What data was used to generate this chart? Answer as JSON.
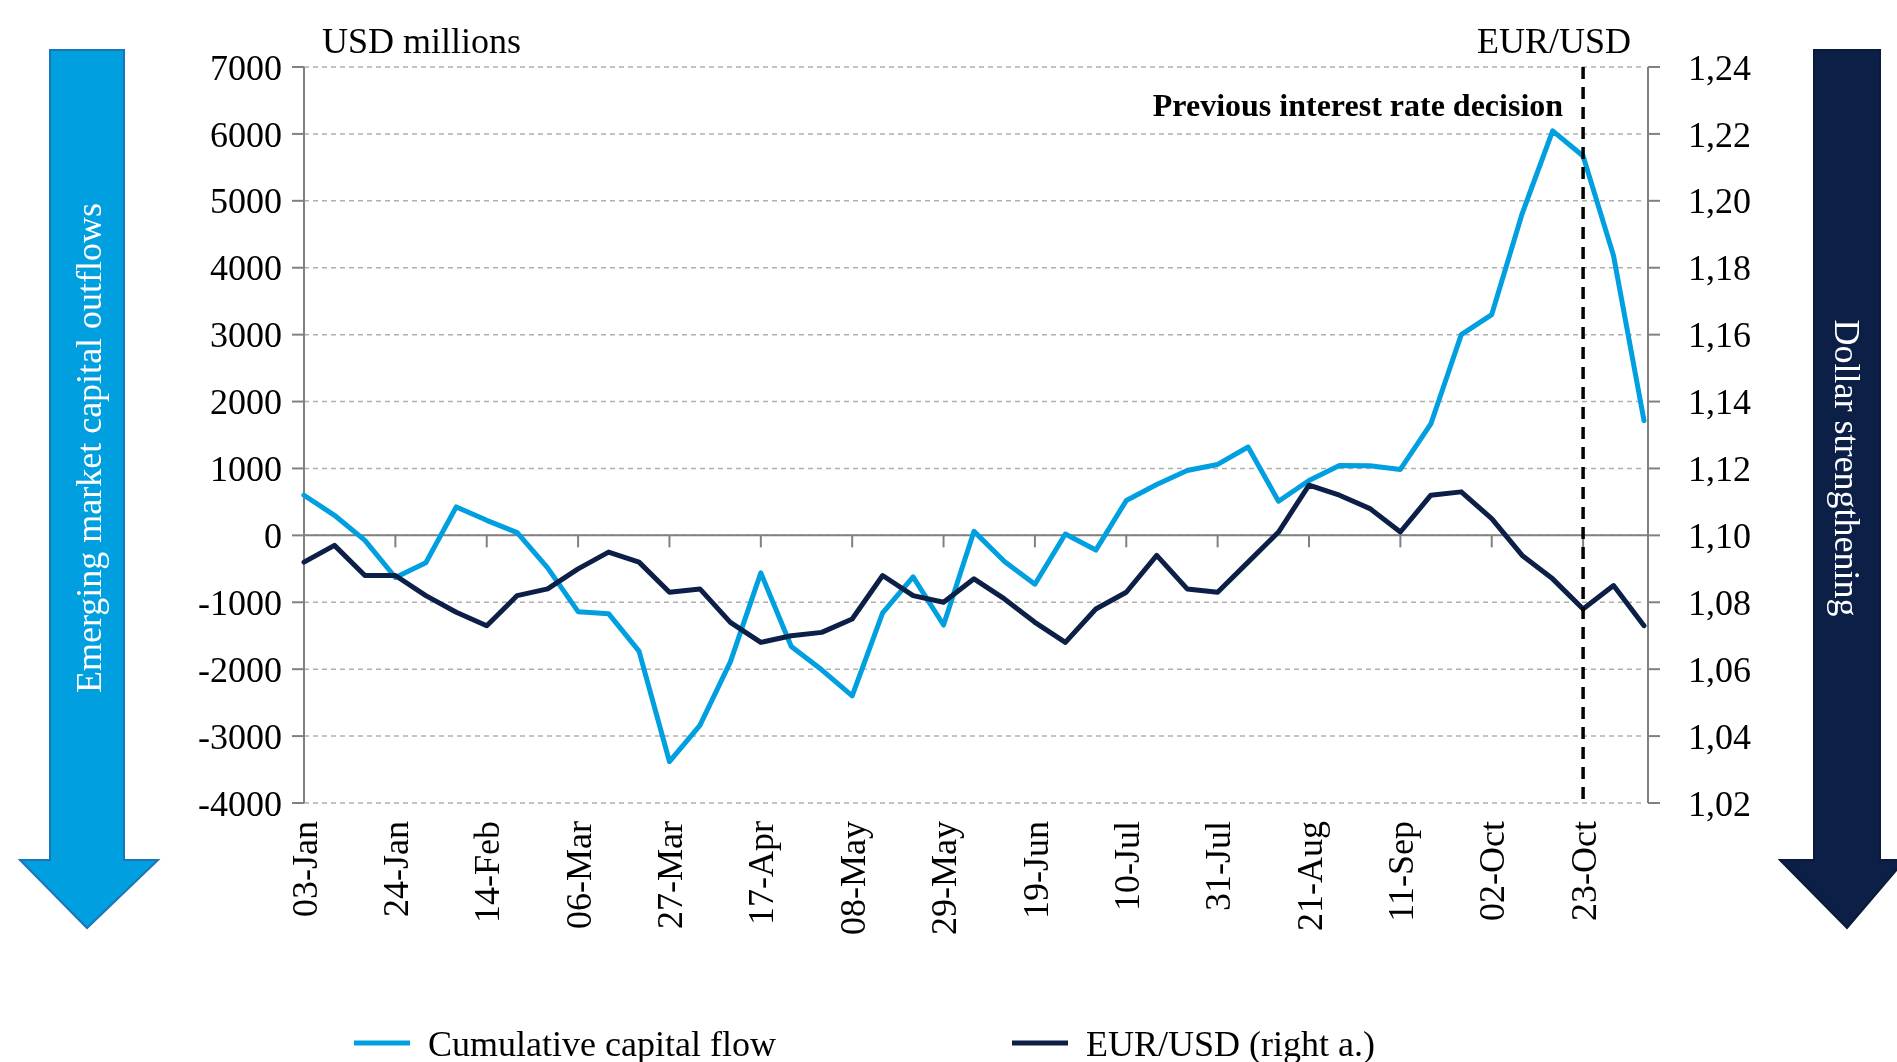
{
  "chart_data": {
    "type": "line",
    "ylabel": "USD millions",
    "y2label": "EUR/USD",
    "categories": [
      "03-Jan",
      null,
      null,
      "24-Jan",
      null,
      null,
      "14-Feb",
      null,
      null,
      "06-Mar",
      null,
      null,
      "27-Mar",
      null,
      null,
      "17-Apr",
      null,
      null,
      "08-May",
      null,
      null,
      "29-May",
      null,
      null,
      "19-Jun",
      null,
      null,
      "10-Jul",
      null,
      null,
      "31-Jul",
      null,
      null,
      "21-Aug",
      null,
      null,
      "11-Sep",
      null,
      null,
      "02-Oct",
      null,
      null,
      "23-Oct",
      null,
      null
    ],
    "series": [
      {
        "name": "Cumulative capital flow",
        "color": "#009fdf",
        "values": [
          600,
          300,
          -75,
          -630,
          -410,
          425,
          225,
          40,
          -485,
          -1140,
          -1170,
          -1730,
          -3380,
          -2840,
          -1890,
          -560,
          -1660,
          -2010,
          -2400,
          -1160,
          -620,
          -1340,
          60,
          -390,
          -730,
          20,
          -220,
          520,
          760,
          970,
          1060,
          1320,
          510,
          820,
          1045,
          1040,
          985,
          1665,
          3000,
          3300,
          4810,
          6045,
          5670,
          4180,
          1715
        ]
      },
      {
        "name": "EUR/USD (right a.)",
        "color": "#0c1f47",
        "axis": "y2",
        "values": [
          1.092,
          1.097,
          1.088,
          1.088,
          1.082,
          1.077,
          1.073,
          1.082,
          1.084,
          1.09,
          1.095,
          1.092,
          1.083,
          1.084,
          1.074,
          1.068,
          1.07,
          1.071,
          1.075,
          1.088,
          1.082,
          1.08,
          1.087,
          1.081,
          1.074,
          1.068,
          1.078,
          1.083,
          1.094,
          1.084,
          1.083,
          1.092,
          1.101,
          1.115,
          1.112,
          1.108,
          1.101,
          1.112,
          1.113,
          1.105,
          1.094,
          1.087,
          1.078,
          1.085,
          1.073
        ]
      }
    ],
    "ylim": [
      -4000,
      7000
    ],
    "yticks": [
      -4000,
      -3000,
      -2000,
      -1000,
      0,
      1000,
      2000,
      3000,
      4000,
      5000,
      6000,
      7000
    ],
    "y2lim": [
      1.02,
      1.24
    ],
    "y2ticks": [
      {
        "value": 1.02,
        "label": "1,02"
      },
      {
        "value": 1.04,
        "label": "1,04"
      },
      {
        "value": 1.06,
        "label": "1,06"
      },
      {
        "value": 1.08,
        "label": "1,08"
      },
      {
        "value": 1.1,
        "label": "1,10"
      },
      {
        "value": 1.12,
        "label": "1,12"
      },
      {
        "value": 1.14,
        "label": "1,14"
      },
      {
        "value": 1.16,
        "label": "1,16"
      },
      {
        "value": 1.18,
        "label": "1,18"
      },
      {
        "value": 1.2,
        "label": "1,20"
      },
      {
        "value": 1.22,
        "label": "1,22"
      },
      {
        "value": 1.24,
        "label": "1,24"
      }
    ],
    "ref_lines": [
      {
        "axis": "x",
        "value": "23-Oct",
        "label": "Previous interest rate decision",
        "color": "#000000",
        "line_style": "dashed"
      }
    ],
    "annotations": [
      "Emerging market capital outflows",
      "Dollar strengthening"
    ],
    "grid": "y",
    "legend": "bottom",
    "marker": "none",
    "line_style": "solid"
  }
}
